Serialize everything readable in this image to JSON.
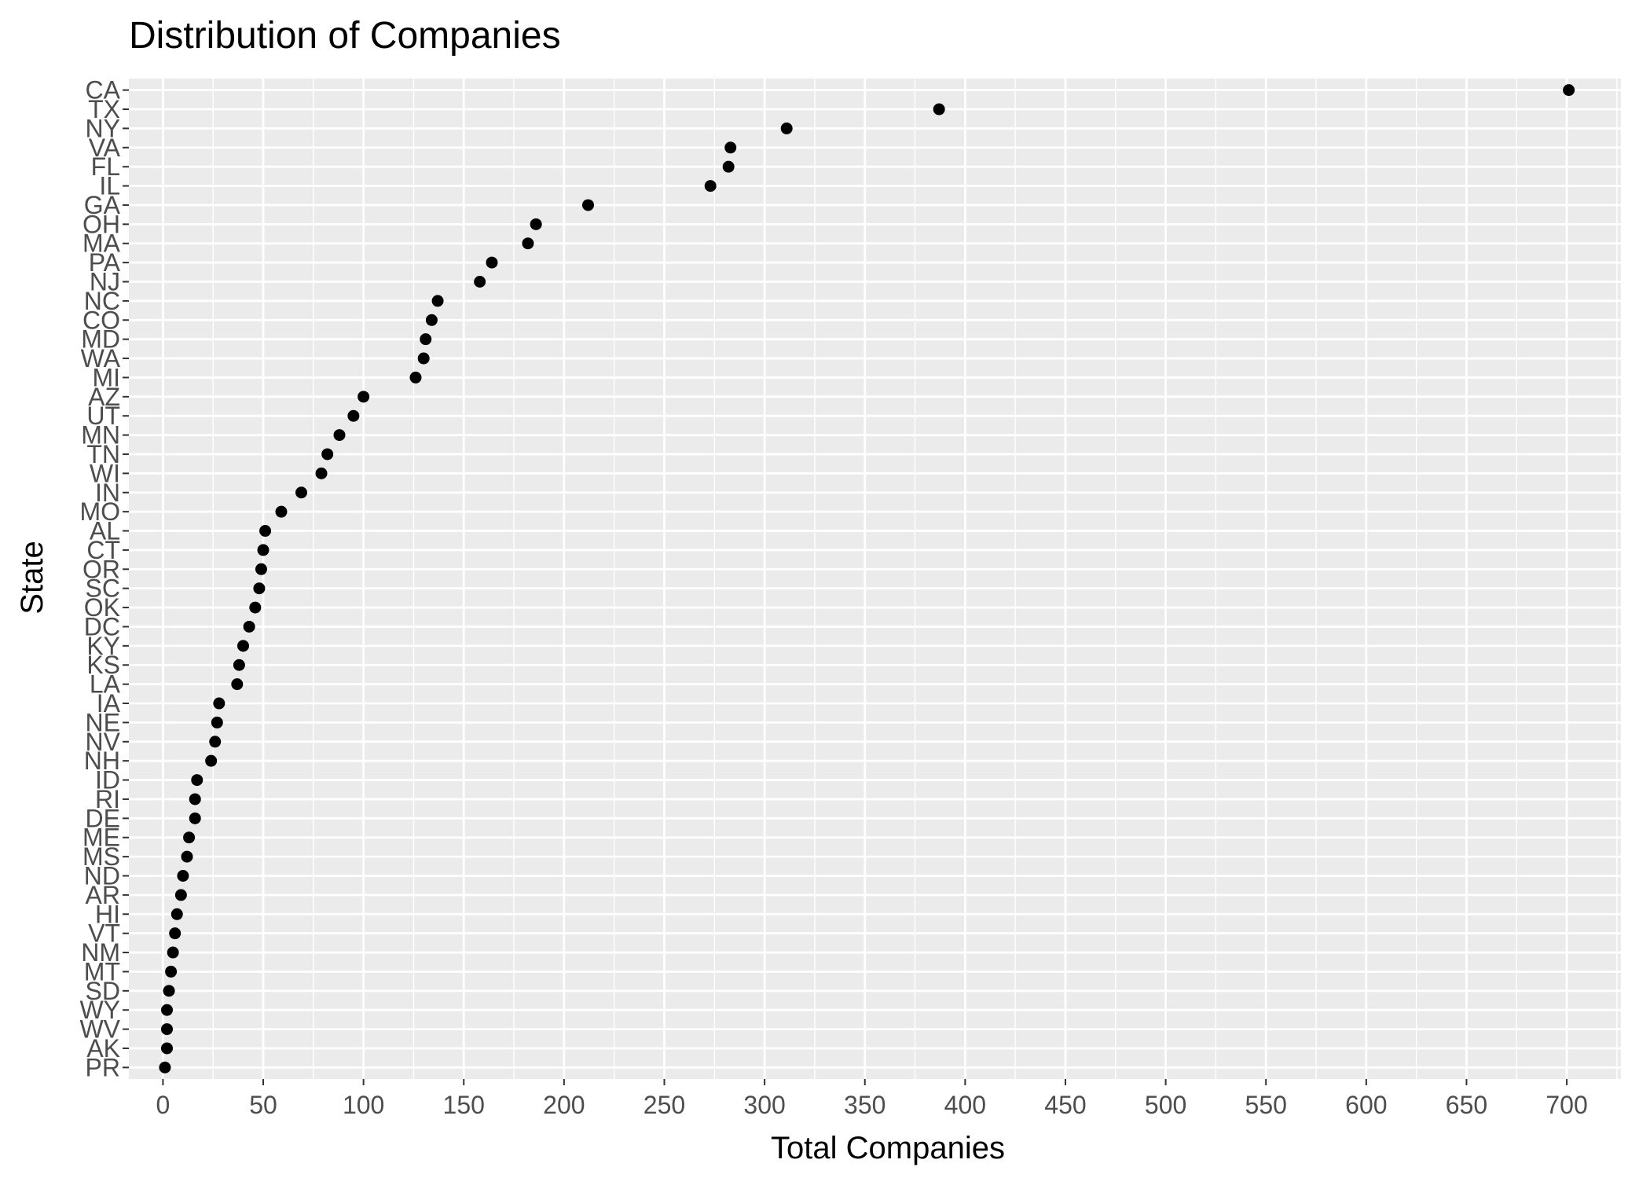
{
  "chart_data": {
    "type": "scatter",
    "title": "Distribution of Companies",
    "xlabel": "Total Companies",
    "ylabel": "State",
    "xlim": [
      -17,
      727
    ],
    "x_ticks": [
      "0",
      "50",
      "100",
      "150",
      "200",
      "250",
      "300",
      "350",
      "400",
      "450",
      "500",
      "550",
      "600",
      "650",
      "700"
    ],
    "grid": true,
    "legend": "none",
    "colors": {
      "panel": "#ebebeb",
      "grid": "#ffffff",
      "point": "#000000",
      "tick_text": "#4d4d4d",
      "tick_mark": "#333333"
    },
    "points": [
      {
        "state": "CA",
        "value": 701
      },
      {
        "state": "TX",
        "value": 387
      },
      {
        "state": "NY",
        "value": 311
      },
      {
        "state": "VA",
        "value": 283
      },
      {
        "state": "FL",
        "value": 282
      },
      {
        "state": "IL",
        "value": 273
      },
      {
        "state": "GA",
        "value": 212
      },
      {
        "state": "OH",
        "value": 186
      },
      {
        "state": "MA",
        "value": 182
      },
      {
        "state": "PA",
        "value": 164
      },
      {
        "state": "NJ",
        "value": 158
      },
      {
        "state": "NC",
        "value": 137
      },
      {
        "state": "CO",
        "value": 134
      },
      {
        "state": "MD",
        "value": 131
      },
      {
        "state": "WA",
        "value": 130
      },
      {
        "state": "MI",
        "value": 126
      },
      {
        "state": "AZ",
        "value": 100
      },
      {
        "state": "UT",
        "value": 95
      },
      {
        "state": "MN",
        "value": 88
      },
      {
        "state": "TN",
        "value": 82
      },
      {
        "state": "WI",
        "value": 79
      },
      {
        "state": "IN",
        "value": 69
      },
      {
        "state": "MO",
        "value": 59
      },
      {
        "state": "AL",
        "value": 51
      },
      {
        "state": "CT",
        "value": 50
      },
      {
        "state": "OR",
        "value": 49
      },
      {
        "state": "SC",
        "value": 48
      },
      {
        "state": "OK",
        "value": 46
      },
      {
        "state": "DC",
        "value": 43
      },
      {
        "state": "KY",
        "value": 40
      },
      {
        "state": "KS",
        "value": 38
      },
      {
        "state": "LA",
        "value": 37
      },
      {
        "state": "IA",
        "value": 28
      },
      {
        "state": "NE",
        "value": 27
      },
      {
        "state": "NV",
        "value": 26
      },
      {
        "state": "NH",
        "value": 24
      },
      {
        "state": "ID",
        "value": 17
      },
      {
        "state": "RI",
        "value": 16
      },
      {
        "state": "DE",
        "value": 16
      },
      {
        "state": "ME",
        "value": 13
      },
      {
        "state": "MS",
        "value": 12
      },
      {
        "state": "ND",
        "value": 10
      },
      {
        "state": "AR",
        "value": 9
      },
      {
        "state": "HI",
        "value": 7
      },
      {
        "state": "VT",
        "value": 6
      },
      {
        "state": "NM",
        "value": 5
      },
      {
        "state": "MT",
        "value": 4
      },
      {
        "state": "SD",
        "value": 3
      },
      {
        "state": "WY",
        "value": 2
      },
      {
        "state": "WV",
        "value": 2
      },
      {
        "state": "AK",
        "value": 2
      },
      {
        "state": "PR",
        "value": 1
      }
    ]
  }
}
